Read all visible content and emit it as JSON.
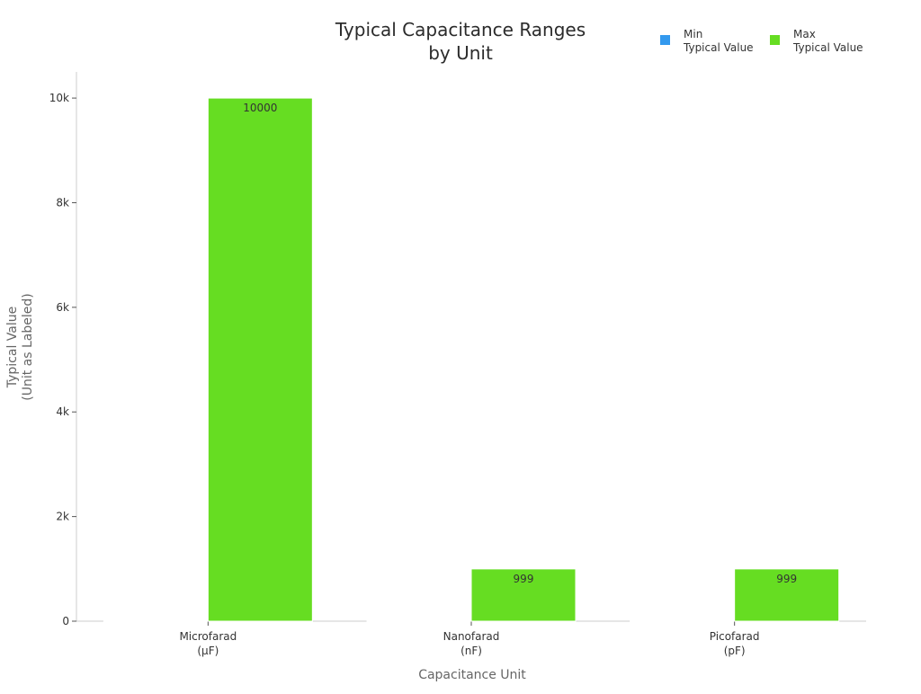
{
  "chart_data": {
    "type": "bar",
    "title": [
      "Typical Capacitance Ranges",
      "by Unit"
    ],
    "xlabel": "Capacitance Unit",
    "ylabel": [
      "Typical Value",
      "(Unit as Labeled)"
    ],
    "categories": [
      [
        "Microfarad",
        "(μF)"
      ],
      [
        "Nanofarad",
        "(nF)"
      ],
      [
        "Picofarad",
        "(pF)"
      ]
    ],
    "series": [
      {
        "name": [
          "Min",
          "Typical Value"
        ],
        "color": "#3399ee",
        "values": [
          1,
          1,
          1
        ],
        "labels": [
          "",
          "",
          ""
        ]
      },
      {
        "name": [
          "Max",
          "Typical Value"
        ],
        "color": "#66dd22",
        "values": [
          10000,
          999,
          999
        ],
        "labels": [
          "10000",
          "999",
          "999"
        ]
      }
    ],
    "ylim": [
      0,
      10500
    ],
    "yticks": [
      0,
      2000,
      4000,
      6000,
      8000,
      10000
    ],
    "ytick_labels": [
      "0",
      "2k",
      "4k",
      "6k",
      "8k",
      "10k"
    ],
    "grid": false,
    "legend_position": "top-right"
  }
}
